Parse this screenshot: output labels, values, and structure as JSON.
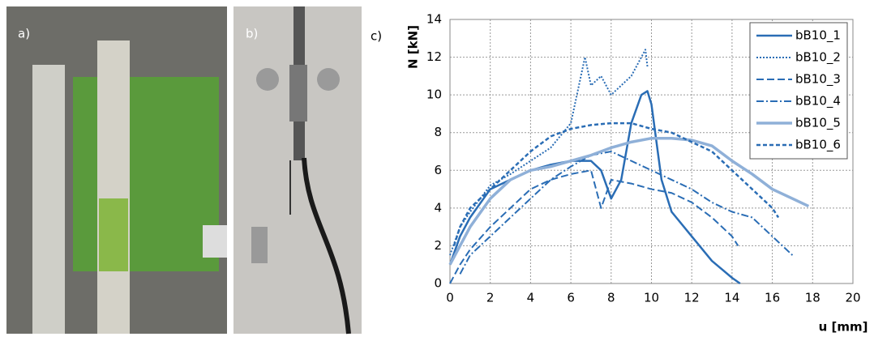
{
  "panel_labels": [
    "a)",
    "b)",
    "c)"
  ],
  "chart_data": {
    "type": "line",
    "x_label": "u [mm]",
    "y_label": "N [kN]",
    "xlim": [
      0,
      20
    ],
    "xticks": [
      0,
      2,
      4,
      6,
      8,
      10,
      12,
      14,
      16,
      18,
      20
    ],
    "ylim": [
      0,
      14
    ],
    "yticks": [
      0,
      2,
      4,
      6,
      8,
      10,
      12,
      14
    ],
    "grid": true,
    "legend": "upper right",
    "series": [
      {
        "name": "bB10_1",
        "color": "#2a6db5",
        "style": "solid",
        "x": [
          0,
          0.5,
          1,
          2,
          3,
          4,
          5,
          6,
          7,
          7.5,
          8,
          8.5,
          9,
          9.5,
          9.8,
          10,
          10.5,
          11,
          12,
          13,
          14,
          14.4
        ],
        "values": [
          1,
          2.5,
          3.5,
          5,
          5.5,
          6,
          6.3,
          6.5,
          6.5,
          6,
          4.5,
          5.5,
          8.5,
          10,
          10.2,
          9.5,
          5.5,
          3.8,
          2.5,
          1.2,
          0.3,
          0
        ]
      },
      {
        "name": "bB10_2",
        "color": "#2a6db5",
        "style": "dotted",
        "x": [
          0,
          0.5,
          1,
          2,
          3,
          4,
          5,
          6,
          6.5,
          6.7,
          7,
          7.5,
          8,
          8.5,
          9,
          9.5,
          9.7,
          9.8
        ],
        "values": [
          1.5,
          3,
          3.8,
          5.2,
          5.8,
          6.5,
          7.2,
          8.5,
          11,
          12,
          10.5,
          11,
          10,
          10.5,
          11,
          12,
          12.4,
          11.5
        ]
      },
      {
        "name": "bB10_3",
        "color": "#2a6db5",
        "style": "dashed",
        "x": [
          0,
          0.5,
          1,
          2,
          3,
          4,
          5,
          6,
          7,
          7.5,
          8,
          9,
          10,
          11,
          12,
          13,
          14,
          14.3
        ],
        "values": [
          0,
          1,
          1.8,
          3,
          4,
          5,
          5.5,
          5.8,
          6,
          4,
          5.5,
          5.3,
          5,
          4.8,
          4.3,
          3.5,
          2.5,
          2
        ]
      },
      {
        "name": "bB10_4",
        "color": "#2a6db5",
        "style": "dashdot",
        "x": [
          0.5,
          1,
          2,
          3,
          4,
          5,
          6,
          7,
          8,
          9,
          10,
          11,
          12,
          13,
          14,
          15,
          16,
          17
        ],
        "values": [
          0.5,
          1.5,
          2.5,
          3.5,
          4.5,
          5.5,
          6.2,
          6.8,
          7,
          6.5,
          6,
          5.5,
          5,
          4.3,
          3.8,
          3.5,
          2.5,
          1.5
        ]
      },
      {
        "name": "bB10_5",
        "color": "#8fb0d8",
        "style": "double",
        "x": [
          0,
          1,
          2,
          3,
          4,
          5,
          6,
          7,
          8,
          9,
          10,
          11,
          12,
          13,
          14,
          15,
          16,
          17,
          17.8
        ],
        "values": [
          1,
          3,
          4.5,
          5.5,
          6,
          6.2,
          6.5,
          6.8,
          7.2,
          7.5,
          7.7,
          7.7,
          7.6,
          7.3,
          6.5,
          5.8,
          5,
          4.5,
          4.1
        ]
      },
      {
        "name": "bB10_6",
        "color": "#2a6db5",
        "style": "heavydash",
        "x": [
          0.2,
          0.5,
          1,
          2,
          3,
          4,
          5,
          6,
          7,
          8,
          9,
          10,
          11,
          12,
          13,
          14,
          15,
          16,
          16.3
        ],
        "values": [
          2,
          3,
          4,
          5,
          6,
          7,
          7.8,
          8.2,
          8.4,
          8.5,
          8.5,
          8.2,
          8,
          7.5,
          7,
          6,
          5,
          4,
          3.5
        ]
      }
    ]
  }
}
